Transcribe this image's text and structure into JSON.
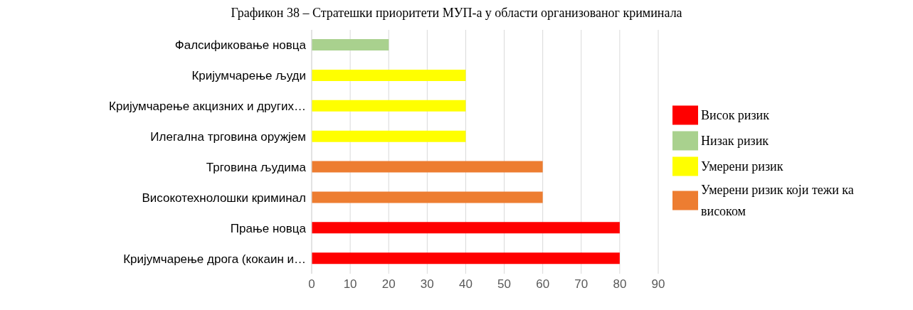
{
  "chart_data": {
    "type": "bar",
    "orientation": "horizontal",
    "stacked": true,
    "title": "Графикон 38 – Стратешки приоритети МУП-а у области организованог криминала",
    "categories": [
      "Фалсификовање новца",
      "Кријумчарење људи",
      "Кријумчарење акцизних и других…",
      "Илегална трговина оружјем",
      "Трговина људима",
      "Високотехнолошки криминал",
      "Прање новца",
      "Кријумчарење дрога (кокаин и…"
    ],
    "series": [
      {
        "name": "Висок ризик",
        "color": "#ff0000",
        "values": [
          null,
          null,
          null,
          null,
          null,
          null,
          80,
          80
        ]
      },
      {
        "name": "Умерени ризик који тежи ка високом",
        "color": "#ed7d31",
        "values": [
          null,
          null,
          null,
          null,
          60,
          60,
          null,
          null
        ]
      },
      {
        "name": "Умерени ризик",
        "color": "#ffff00",
        "values": [
          null,
          40,
          40,
          40,
          null,
          null,
          null,
          null
        ]
      },
      {
        "name": "Низак ризик",
        "color": "#a9d18e",
        "values": [
          20,
          null,
          null,
          null,
          null,
          null,
          null,
          null
        ]
      }
    ],
    "xlim": [
      0,
      90
    ],
    "xticks": [
      0,
      10,
      20,
      30,
      40,
      50,
      60,
      70,
      80,
      90
    ],
    "grid": "x",
    "legend": "right"
  }
}
